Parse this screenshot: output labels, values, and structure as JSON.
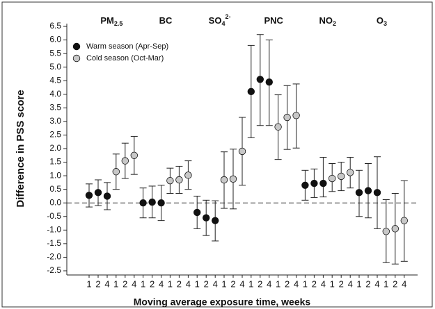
{
  "chart_data": {
    "type": "errorbar",
    "x_label": "Moving average exposure time, weeks",
    "y_label": "Difference in PSS score",
    "categories": [
      {
        "main": "PM",
        "sub": "2.5"
      },
      {
        "main": "BC"
      },
      {
        "main": "SO",
        "sub": "4",
        "sup": "2-"
      },
      {
        "main": "PNC"
      },
      {
        "main": "NO",
        "sub": "2"
      },
      {
        "main": "O",
        "sub": "3"
      }
    ],
    "week_labels": [
      "1",
      "2",
      "4"
    ],
    "ylim": [
      -2.5,
      6.5
    ],
    "yticks": [
      -2.5,
      {
        "value": -2,
        "label": "-2.0"
      },
      -1.5,
      {
        "value": -1,
        "label": "-1.0"
      },
      -0.5,
      {
        "value": 0,
        "label": "0.0"
      },
      0.5,
      {
        "value": 1,
        "label": "1.0"
      },
      1.5,
      {
        "value": 2,
        "label": "2.0"
      },
      2.5,
      {
        "value": 3,
        "label": "3.0"
      },
      3.5,
      {
        "value": 4,
        "label": "4.0"
      },
      4.5,
      {
        "value": 5,
        "label": "5.0"
      },
      5.5,
      {
        "value": 6,
        "label": "6.0"
      },
      6.5
    ],
    "reference_y": 0,
    "series": [
      {
        "name": "Warm season (Apr-Sep)",
        "color": "#111111",
        "values": [
          [
            0.28,
            0.38,
            0.25
          ],
          [
            0.0,
            0.03,
            0.0
          ],
          [
            -0.35,
            -0.55,
            -0.65
          ],
          [
            4.1,
            4.55,
            4.45
          ],
          [
            0.65,
            0.72,
            0.72
          ],
          [
            0.38,
            0.45,
            0.38
          ]
        ],
        "lower": [
          [
            -0.15,
            -0.1,
            -0.25
          ],
          [
            -0.55,
            -0.55,
            -0.65
          ],
          [
            -0.95,
            -1.2,
            -1.4
          ],
          [
            2.4,
            2.85,
            2.85
          ],
          [
            0.1,
            0.2,
            0.22
          ],
          [
            -0.5,
            -0.55,
            -0.95
          ]
        ],
        "upper": [
          [
            0.7,
            0.85,
            0.75
          ],
          [
            0.55,
            0.62,
            0.65
          ],
          [
            0.25,
            0.1,
            0.08
          ],
          [
            5.8,
            6.2,
            6.0
          ],
          [
            1.2,
            1.25,
            1.68
          ],
          [
            1.2,
            1.45,
            1.7
          ]
        ]
      },
      {
        "name": "Cold season (Oct-Mar)",
        "color": "#c8c8c8",
        "values": [
          [
            1.15,
            1.55,
            1.75
          ],
          [
            0.82,
            0.85,
            1.02
          ],
          [
            0.85,
            0.88,
            1.9
          ],
          [
            2.8,
            3.15,
            3.22
          ],
          [
            0.9,
            0.98,
            1.12
          ],
          [
            -1.05,
            -0.95,
            -0.65
          ]
        ],
        "lower": [
          [
            0.5,
            0.9,
            1.05
          ],
          [
            0.35,
            0.35,
            0.5
          ],
          [
            -0.2,
            -0.22,
            0.65
          ],
          [
            1.6,
            1.97,
            2.02
          ],
          [
            0.42,
            0.45,
            0.55
          ],
          [
            -2.2,
            -2.25,
            -2.15
          ]
        ],
        "upper": [
          [
            1.8,
            2.2,
            2.45
          ],
          [
            1.28,
            1.35,
            1.55
          ],
          [
            1.88,
            1.98,
            3.15
          ],
          [
            3.98,
            4.32,
            4.38
          ],
          [
            1.45,
            1.5,
            1.68
          ],
          [
            0.12,
            0.35,
            0.82
          ]
        ]
      }
    ]
  }
}
